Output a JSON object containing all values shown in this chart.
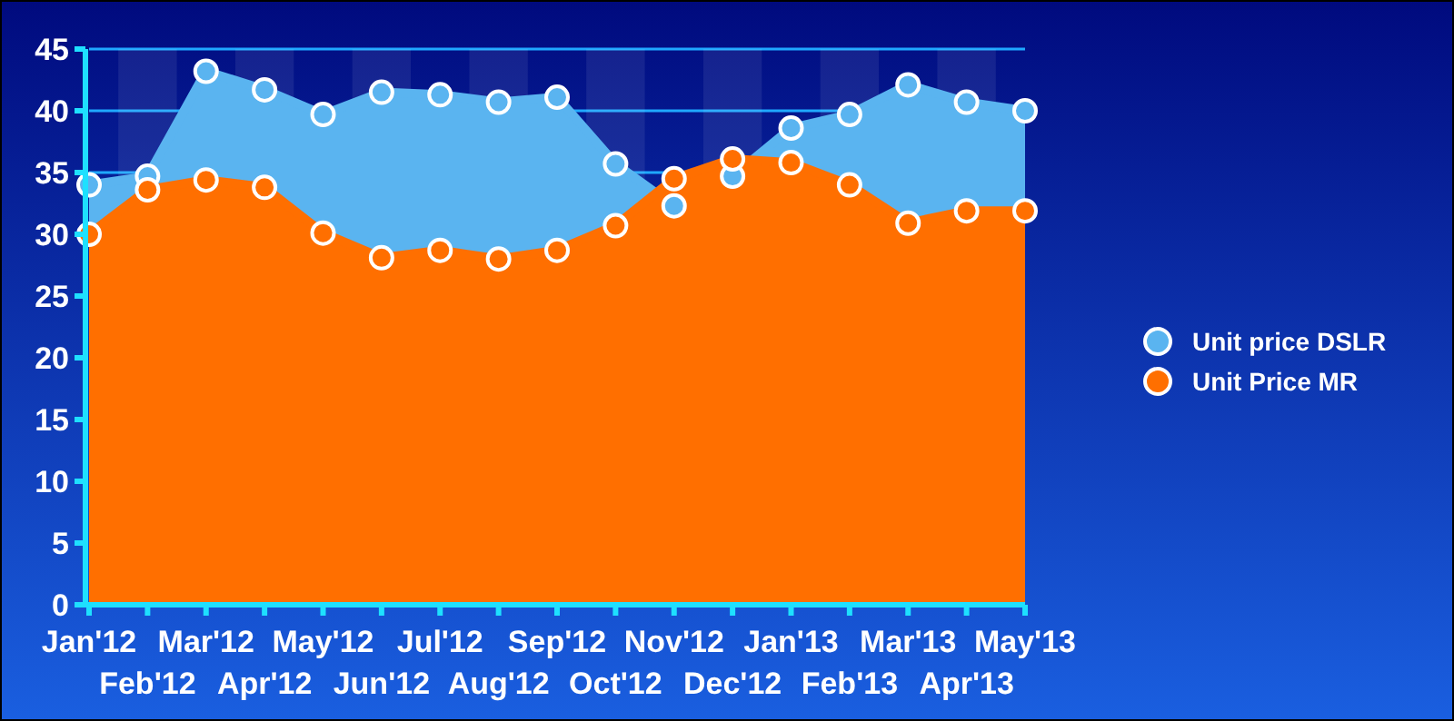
{
  "chart_data": {
    "type": "area",
    "categories": [
      "Jan'12",
      "Feb'12",
      "Mar'12",
      "Apr'12",
      "May'12",
      "Jun'12",
      "Jul'12",
      "Aug'12",
      "Sep'12",
      "Oct'12",
      "Nov'12",
      "Dec'12",
      "Jan'13",
      "Feb'13",
      "Mar'13",
      "Apr'13",
      "May'13"
    ],
    "series": [
      {
        "name": "Unit price DSLR",
        "color": "#5ab4f0",
        "values": [
          34.0,
          34.7,
          43.2,
          41.7,
          39.7,
          41.5,
          41.3,
          40.7,
          41.1,
          35.7,
          32.3,
          34.7,
          38.6,
          39.7,
          42.1,
          40.7,
          40.0
        ]
      },
      {
        "name": "Unit Price MR",
        "color": "#ff6f00",
        "values": [
          30.0,
          33.6,
          34.4,
          33.8,
          30.1,
          28.1,
          28.7,
          28.0,
          28.7,
          30.7,
          34.5,
          36.1,
          35.8,
          34.0,
          30.9,
          31.9,
          31.9
        ]
      }
    ],
    "ylim": [
      0,
      45
    ],
    "yticks": [
      0,
      5,
      10,
      15,
      20,
      25,
      30,
      35,
      40,
      45
    ],
    "grid": "y",
    "legend": "right",
    "marker": "circle"
  }
}
